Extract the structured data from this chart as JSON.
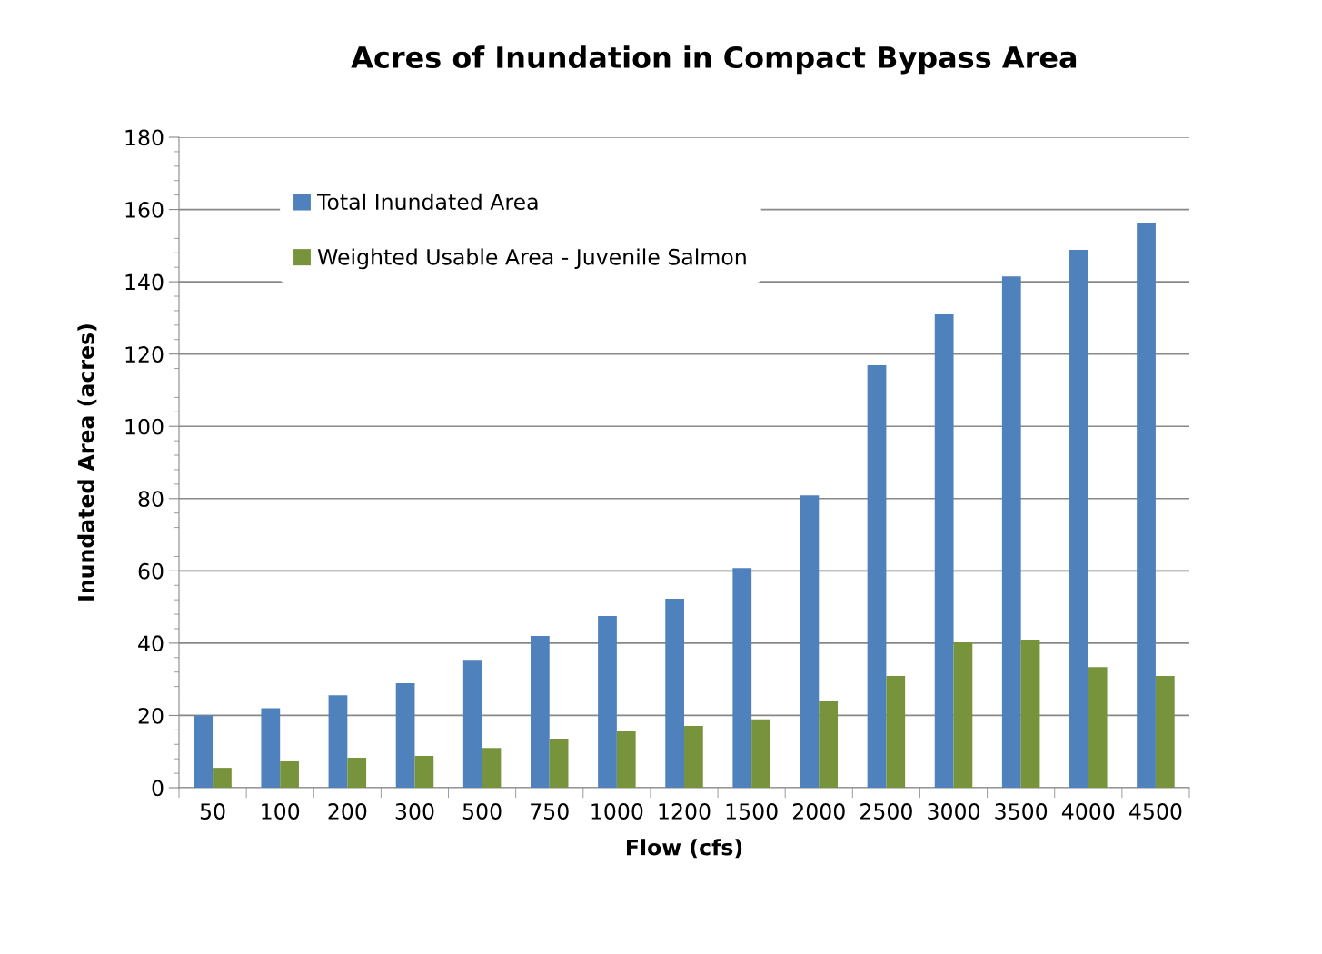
{
  "chart_data": {
    "type": "bar",
    "title": "Acres of Inundation in Compact Bypass Area",
    "xlabel": "Flow (cfs)",
    "ylabel": "Inundated Area (acres)",
    "categories": [
      "50",
      "100",
      "200",
      "300",
      "500",
      "750",
      "1000",
      "1200",
      "1500",
      "2000",
      "2500",
      "3000",
      "3500",
      "4000",
      "4500"
    ],
    "series": [
      {
        "name": "Total Inundated Area",
        "color": "#4f81bd",
        "values": [
          20,
          22,
          25.6,
          28.9,
          35.4,
          42,
          47.5,
          52.3,
          60.8,
          80.9,
          116.9,
          131,
          141.5,
          148.8,
          156.4
        ]
      },
      {
        "name": "Weighted Usable Area - Juvenile Salmon",
        "color": "#77933c",
        "values": [
          5.5,
          7.3,
          8.3,
          8.8,
          11,
          13.6,
          15.6,
          17.1,
          18.9,
          23.9,
          30.9,
          40.2,
          41,
          33.4,
          30.9
        ]
      }
    ],
    "ylim": [
      0,
      180
    ],
    "yticks": [
      0,
      20,
      40,
      60,
      80,
      100,
      120,
      140,
      160,
      180
    ],
    "grid": "y",
    "legend": "top left"
  }
}
